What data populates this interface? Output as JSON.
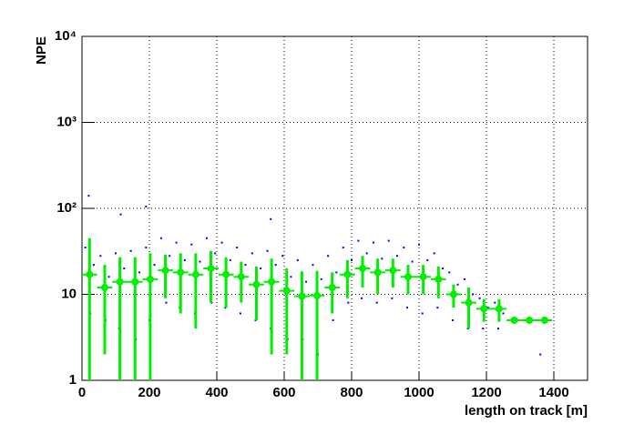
{
  "chart_data": {
    "type": "scatter-profile",
    "x_label": "length on track [m]",
    "y_label": "NPE",
    "xlim": [
      0,
      1500
    ],
    "ylim": [
      1,
      10000
    ],
    "log_y": true,
    "grid": true,
    "xticks": [
      0,
      200,
      400,
      600,
      800,
      1000,
      1200,
      1400
    ],
    "yticks": [
      1,
      10,
      {
        "value": 100,
        "label": "10²"
      },
      {
        "value": 1000,
        "label": "10³"
      },
      {
        "value": 10000,
        "label": "10⁴"
      }
    ],
    "scatter": {
      "color": "#0000ff",
      "x": [
        10,
        25,
        35,
        55,
        70,
        80,
        100,
        110,
        125,
        145,
        160,
        170,
        190,
        200,
        215,
        235,
        250,
        260,
        280,
        290,
        305,
        325,
        335,
        350,
        370,
        385,
        395,
        415,
        425,
        440,
        460,
        470,
        485,
        505,
        515,
        530,
        550,
        560,
        575,
        595,
        610,
        620,
        640,
        655,
        665,
        685,
        700,
        710,
        730,
        745,
        755,
        775,
        790,
        800,
        820,
        830,
        845,
        865,
        875,
        890,
        910,
        920,
        935,
        955,
        965,
        980,
        1000,
        1010,
        1025,
        1045,
        1055,
        1070,
        1090,
        1100,
        1115,
        1135,
        1145,
        1160,
        1180,
        1190,
        1205,
        1225,
        1235,
        1250,
        1270,
        1280,
        1290,
        20,
        190,
        115,
        560,
        1360
      ],
      "y": [
        35,
        6,
        22,
        28,
        5,
        16,
        30,
        4,
        20,
        32,
        3,
        18,
        35,
        5,
        22,
        45,
        8,
        28,
        40,
        7,
        25,
        38,
        6,
        24,
        45,
        8,
        30,
        40,
        7,
        25,
        35,
        6,
        22,
        30,
        5,
        20,
        32,
        4,
        22,
        28,
        3,
        16,
        25,
        3,
        14,
        22,
        2,
        15,
        28,
        5,
        18,
        35,
        8,
        25,
        42,
        9,
        30,
        40,
        8,
        26,
        42,
        9,
        28,
        35,
        7,
        24,
        38,
        6,
        25,
        30,
        7,
        20,
        18,
        5,
        13,
        15,
        4,
        10,
        9,
        4,
        7,
        8,
        4,
        6,
        5,
        5,
        5,
        140,
        105,
        85,
        75,
        2
      ]
    },
    "profile": {
      "color": "#00ee00",
      "x_error": 22.5,
      "x": [
        22.5,
        67.5,
        112.5,
        157.5,
        202.5,
        247.5,
        292.5,
        337.5,
        382.5,
        427.5,
        472.5,
        517.5,
        562.5,
        607.5,
        652.5,
        697.5,
        742.5,
        787.5,
        832.5,
        877.5,
        922.5,
        967.5,
        1012.5,
        1057.5,
        1102.5,
        1147.5,
        1192.5,
        1237.5,
        1282.5,
        1327.5,
        1372.5
      ],
      "values": [
        17,
        12,
        14,
        14,
        15,
        19,
        18,
        17,
        20,
        17,
        16,
        13,
        14,
        11,
        9.5,
        9.7,
        12,
        17,
        20,
        18,
        19,
        16,
        16,
        15,
        10,
        8,
        6.8,
        6.8,
        5,
        5,
        5
      ],
      "errors": [
        28,
        10,
        13,
        13,
        15,
        10,
        12,
        13,
        12,
        10,
        8,
        8,
        12,
        9,
        9,
        9,
        6,
        8,
        8,
        8,
        7,
        6,
        6,
        6,
        3,
        4,
        2,
        2,
        0,
        0,
        0
      ]
    }
  }
}
